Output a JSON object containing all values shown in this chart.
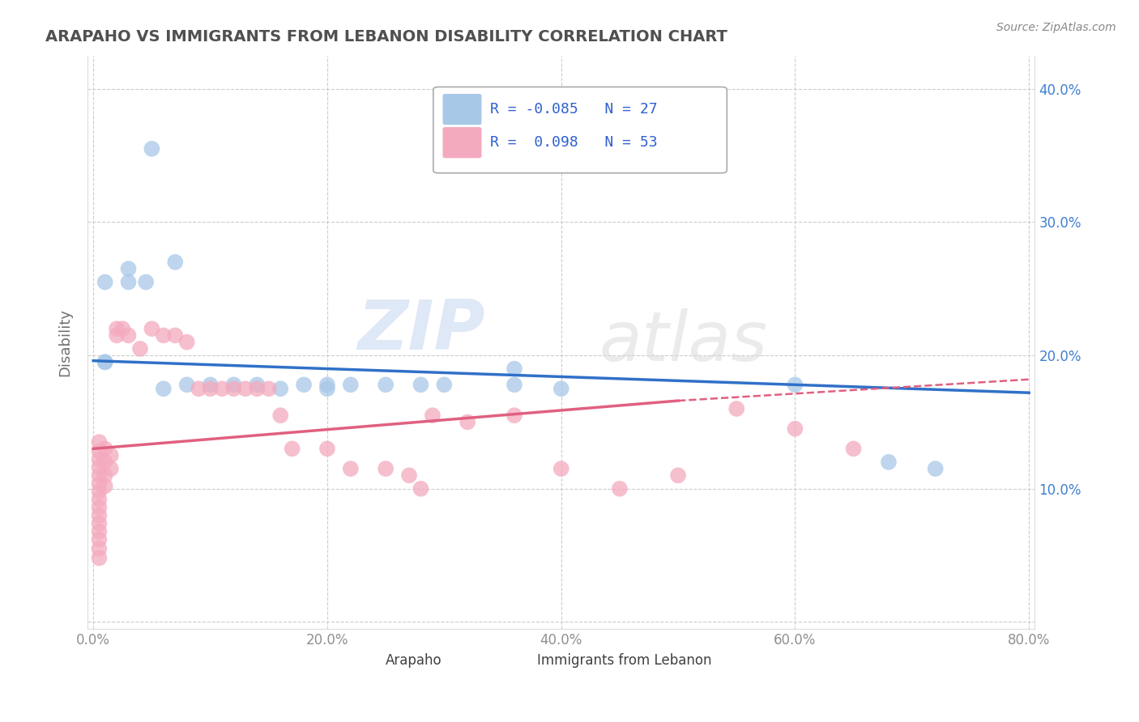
{
  "title": "ARAPAHO VS IMMIGRANTS FROM LEBANON DISABILITY CORRELATION CHART",
  "source": "Source: ZipAtlas.com",
  "ylabel": "Disability",
  "watermark": "ZIPatlas",
  "xlim": [
    -0.005,
    0.805
  ],
  "ylim": [
    -0.005,
    0.425
  ],
  "xticks": [
    0.0,
    0.2,
    0.4,
    0.6,
    0.8
  ],
  "xticklabels": [
    "0.0%",
    "20.0%",
    "40.0%",
    "60.0%",
    "80.0%"
  ],
  "yticks_left": [
    0.0,
    0.1,
    0.2,
    0.3,
    0.4
  ],
  "yticklabels_left": [
    "",
    "",
    "",
    "",
    ""
  ],
  "yticks_right": [
    0.1,
    0.2,
    0.3,
    0.4
  ],
  "yticklabels_right": [
    "10.0%",
    "20.0%",
    "30.0%",
    "40.0%"
  ],
  "legend_labels": [
    "Arapaho",
    "Immigrants from Lebanon"
  ],
  "arapaho_R": -0.085,
  "arapaho_N": 27,
  "lebanon_R": 0.098,
  "lebanon_N": 53,
  "arapaho_color": "#a8c8e8",
  "lebanon_color": "#f4aabe",
  "arapaho_line_color": "#3070c8",
  "lebanon_line_color": "#e06080",
  "arapaho_scatter": [
    [
      0.01,
      0.195
    ],
    [
      0.03,
      0.265
    ],
    [
      0.05,
      0.355
    ],
    [
      0.07,
      0.27
    ],
    [
      0.045,
      0.255
    ],
    [
      0.03,
      0.255
    ],
    [
      0.01,
      0.255
    ],
    [
      0.01,
      0.195
    ],
    [
      0.06,
      0.175
    ],
    [
      0.08,
      0.178
    ],
    [
      0.1,
      0.178
    ],
    [
      0.12,
      0.178
    ],
    [
      0.14,
      0.178
    ],
    [
      0.16,
      0.175
    ],
    [
      0.18,
      0.178
    ],
    [
      0.2,
      0.175
    ],
    [
      0.2,
      0.178
    ],
    [
      0.22,
      0.178
    ],
    [
      0.25,
      0.178
    ],
    [
      0.28,
      0.178
    ],
    [
      0.3,
      0.178
    ],
    [
      0.36,
      0.19
    ],
    [
      0.36,
      0.178
    ],
    [
      0.4,
      0.175
    ],
    [
      0.6,
      0.178
    ],
    [
      0.68,
      0.12
    ],
    [
      0.72,
      0.115
    ]
  ],
  "lebanon_scatter": [
    [
      0.005,
      0.135
    ],
    [
      0.005,
      0.128
    ],
    [
      0.005,
      0.122
    ],
    [
      0.005,
      0.116
    ],
    [
      0.005,
      0.11
    ],
    [
      0.005,
      0.104
    ],
    [
      0.005,
      0.098
    ],
    [
      0.005,
      0.092
    ],
    [
      0.005,
      0.086
    ],
    [
      0.005,
      0.08
    ],
    [
      0.005,
      0.074
    ],
    [
      0.005,
      0.068
    ],
    [
      0.005,
      0.062
    ],
    [
      0.005,
      0.055
    ],
    [
      0.005,
      0.048
    ],
    [
      0.01,
      0.13
    ],
    [
      0.01,
      0.12
    ],
    [
      0.01,
      0.11
    ],
    [
      0.01,
      0.102
    ],
    [
      0.015,
      0.125
    ],
    [
      0.015,
      0.115
    ],
    [
      0.02,
      0.22
    ],
    [
      0.02,
      0.215
    ],
    [
      0.025,
      0.22
    ],
    [
      0.03,
      0.215
    ],
    [
      0.04,
      0.205
    ],
    [
      0.05,
      0.22
    ],
    [
      0.06,
      0.215
    ],
    [
      0.07,
      0.215
    ],
    [
      0.08,
      0.21
    ],
    [
      0.09,
      0.175
    ],
    [
      0.1,
      0.175
    ],
    [
      0.11,
      0.175
    ],
    [
      0.12,
      0.175
    ],
    [
      0.13,
      0.175
    ],
    [
      0.14,
      0.175
    ],
    [
      0.15,
      0.175
    ],
    [
      0.16,
      0.155
    ],
    [
      0.17,
      0.13
    ],
    [
      0.2,
      0.13
    ],
    [
      0.22,
      0.115
    ],
    [
      0.25,
      0.115
    ],
    [
      0.27,
      0.11
    ],
    [
      0.28,
      0.1
    ],
    [
      0.29,
      0.155
    ],
    [
      0.32,
      0.15
    ],
    [
      0.36,
      0.155
    ],
    [
      0.4,
      0.115
    ],
    [
      0.45,
      0.1
    ],
    [
      0.5,
      0.11
    ],
    [
      0.55,
      0.16
    ],
    [
      0.6,
      0.145
    ],
    [
      0.65,
      0.13
    ]
  ],
  "arapaho_line": [
    [
      0.0,
      0.196
    ],
    [
      0.8,
      0.172
    ]
  ],
  "lebanon_line_solid": [
    [
      0.0,
      0.13
    ],
    [
      0.5,
      0.166
    ]
  ],
  "lebanon_line_dashed": [
    [
      0.5,
      0.166
    ],
    [
      0.8,
      0.182
    ]
  ],
  "grid_color": "#cccccc",
  "background_color": "#ffffff",
  "title_color": "#505050",
  "axis_label_color": "#707070",
  "tick_label_color": "#909090",
  "legend_R_color": "#3060d0",
  "legend_box_color": "#aaaaaa"
}
